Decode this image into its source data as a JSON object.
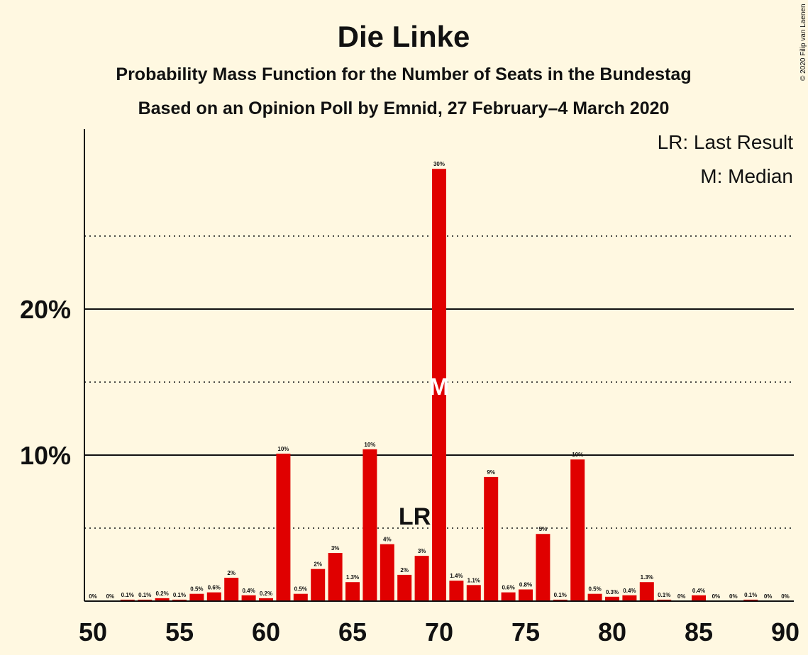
{
  "copyright": "© 2020 Filip van Laenen",
  "chart_data": {
    "type": "bar",
    "title": "Die Linke",
    "subtitle": "Probability Mass Function for the Number of Seats in the Bundestag",
    "subtitle2": "Based on an Opinion Poll by Emnid, 27 February–4 March 2020",
    "xlabel": "",
    "ylabel": "",
    "x": [
      50,
      51,
      52,
      53,
      54,
      55,
      56,
      57,
      58,
      59,
      60,
      61,
      62,
      63,
      64,
      65,
      66,
      67,
      68,
      69,
      70,
      71,
      72,
      73,
      74,
      75,
      76,
      77,
      78,
      79,
      80,
      81,
      82,
      83,
      84,
      85,
      86,
      87,
      88,
      89,
      90
    ],
    "values": [
      0,
      0,
      0.1,
      0.1,
      0.2,
      0.1,
      0.5,
      0.6,
      1.6,
      0.4,
      0.2,
      10.1,
      0.5,
      2.2,
      3.3,
      1.3,
      10.4,
      3.9,
      1.8,
      3.1,
      29.6,
      1.4,
      1.1,
      8.5,
      0.6,
      0.8,
      4.6,
      0.1,
      9.7,
      0.5,
      0.3,
      0.4,
      1.3,
      0.1,
      0,
      0.4,
      0,
      0,
      0.1,
      0,
      0
    ],
    "labels": [
      "0%",
      "0%",
      "0.1%",
      "0.1%",
      "0.2%",
      "0.1%",
      "0.5%",
      "0.6%",
      "2%",
      "0.4%",
      "0.2%",
      "10%",
      "0.5%",
      "2%",
      "3%",
      "1.3%",
      "10%",
      "4%",
      "2%",
      "3%",
      "30%",
      "1.4%",
      "1.1%",
      "9%",
      "0.6%",
      "0.8%",
      "5%",
      "0.1%",
      "10%",
      "0.5%",
      "0.3%",
      "0.4%",
      "1.3%",
      "0.1%",
      "0%",
      "0.4%",
      "0%",
      "0%",
      "0.1%",
      "0%",
      "0%"
    ],
    "x_ticks": [
      "50",
      "55",
      "60",
      "65",
      "70",
      "75",
      "80",
      "85",
      "90"
    ],
    "y_ticks": [
      "10%",
      "20%"
    ],
    "ylim": [
      0,
      32
    ],
    "solid_gridlines": [
      10,
      20
    ],
    "dotted_gridlines": [
      5,
      15,
      25
    ],
    "bar_color": "#E00000",
    "last_result": {
      "seat": 69,
      "label": "LR"
    },
    "median": {
      "seat": 70,
      "label": "M"
    },
    "legend": [
      "LR: Last Result",
      "M: Median"
    ]
  }
}
